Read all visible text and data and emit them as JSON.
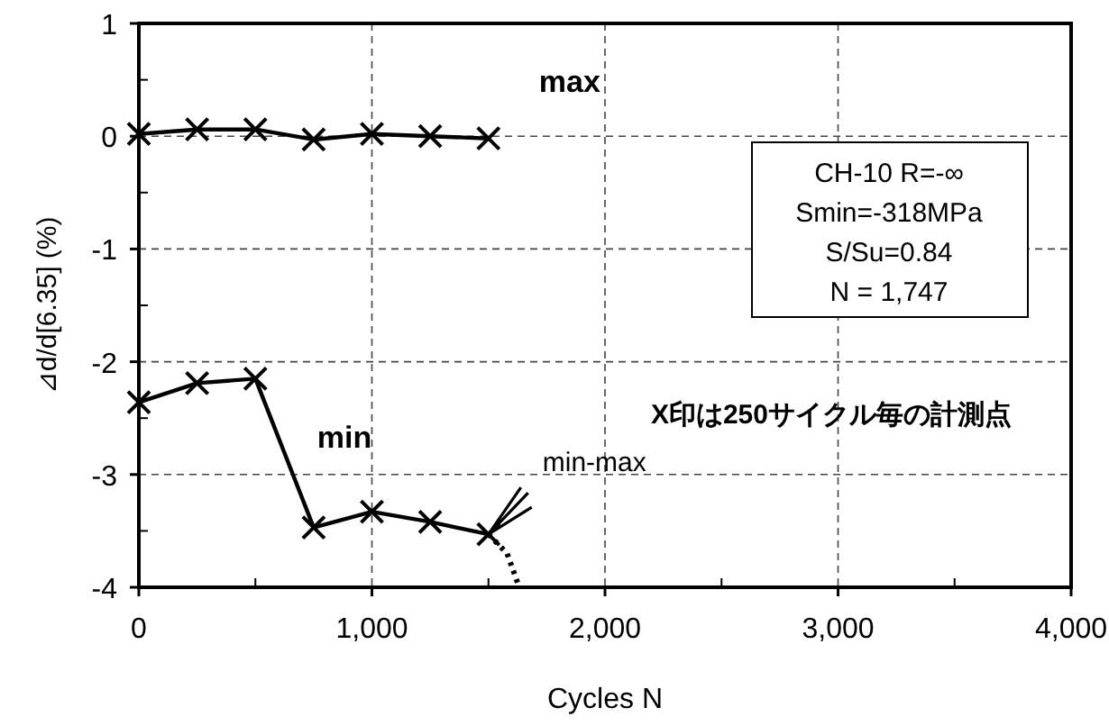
{
  "chart_data": {
    "type": "line",
    "xlabel": "Cycles N",
    "ylabel": "⊿d/d[6.35]  (%)",
    "x": [
      0,
      250,
      500,
      750,
      1000,
      1250,
      1500
    ],
    "series": [
      {
        "name": "max",
        "color": "#000000",
        "values": [
          0.02,
          0.06,
          0.06,
          -0.03,
          0.02,
          0.0,
          -0.02
        ]
      },
      {
        "name": "min",
        "color": "#000000",
        "values": [
          -2.36,
          -2.19,
          -2.15,
          -3.47,
          -3.33,
          -3.42,
          -3.53
        ]
      },
      {
        "color": "#000000",
        "x": [
          1500,
          1580,
          1632
        ],
        "values": [
          -3.53,
          -3.7,
          -4
        ],
        "line_style": "dotted",
        "marker": "none"
      }
    ],
    "xlim": [
      0,
      4000
    ],
    "xticks": [
      {
        "value": 0,
        "label": "0"
      },
      {
        "value": 1000,
        "label": "1,000"
      },
      {
        "value": 2000,
        "label": "2,000"
      },
      {
        "value": 3000,
        "label": "3,000"
      },
      {
        "value": 4000,
        "label": "4,000"
      }
    ],
    "ylim": [
      -4,
      1
    ],
    "yticks": [
      -4,
      -3,
      -2,
      -1,
      0,
      1
    ],
    "grid": true,
    "marker": "cross",
    "line_style": "solid",
    "annotations": [
      "CH-10 R=-∞",
      "Smin=-318MPa",
      "S/Su=0.84",
      "N = 1,747",
      "X印は250サイクル毎の計測点",
      {
        "text": "min-max",
        "x": 1500,
        "y": -3.53
      }
    ]
  }
}
